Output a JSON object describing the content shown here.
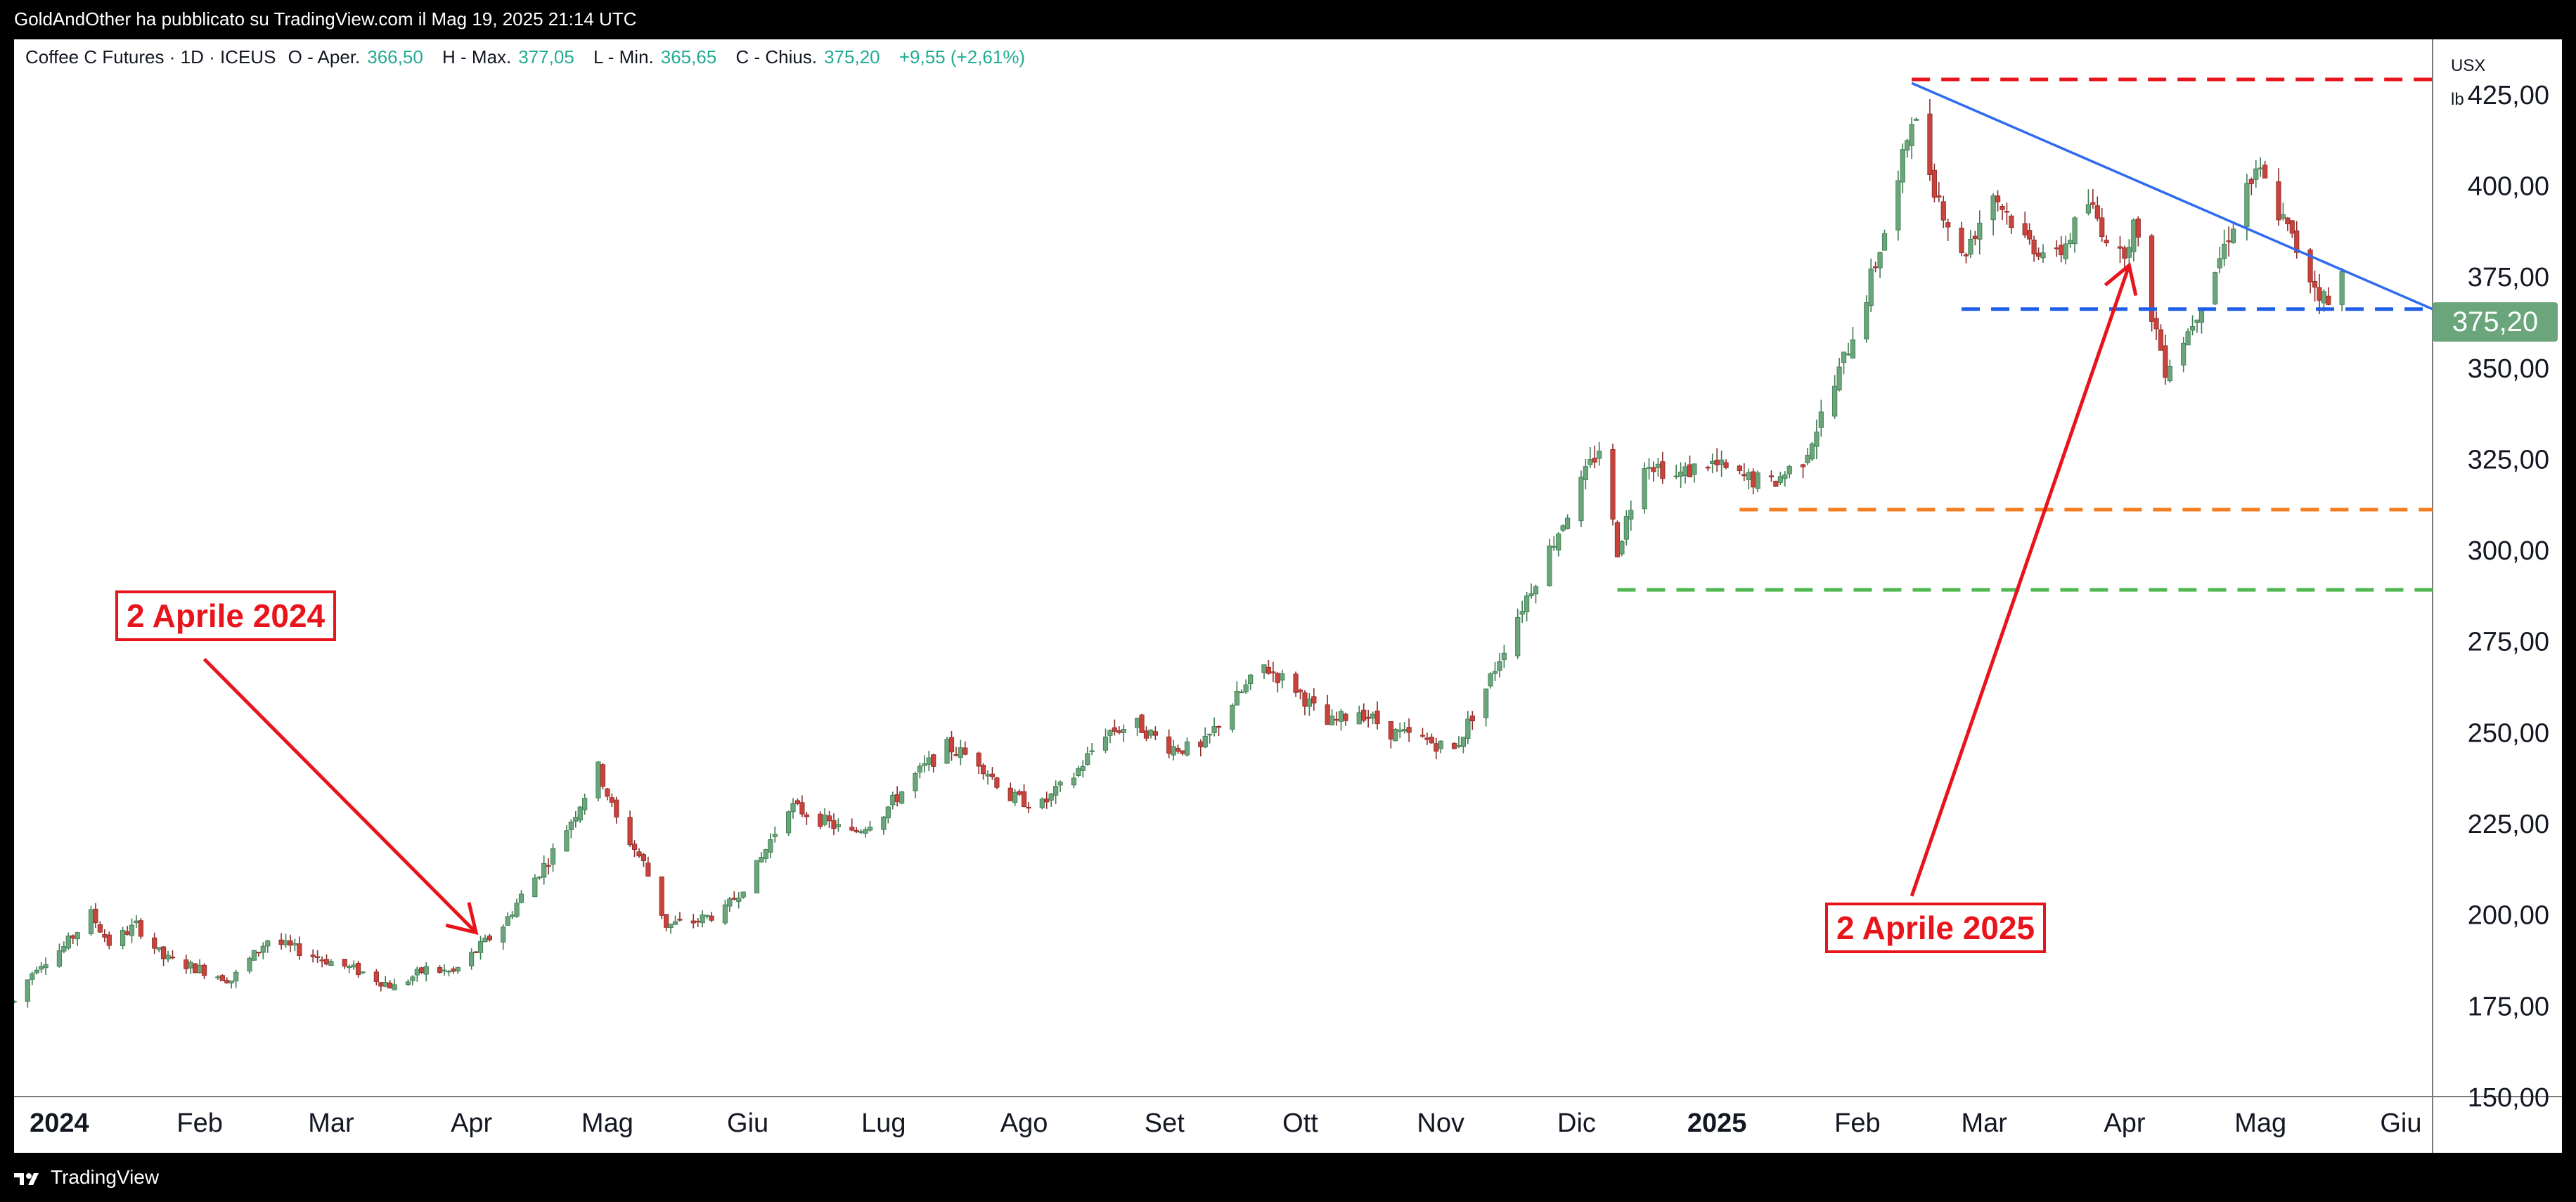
{
  "header": {
    "published_by": "GoldAndOther ha pubblicato su TradingView.com il Mag 19, 2025 21:14 UTC"
  },
  "legend": {
    "symbol": "Coffee C Futures · 1D · ICEUS",
    "open_label": "O - Aper.",
    "open": "366,50",
    "high_label": "H - Max.",
    "high": "377,05",
    "low_label": "L - Min.",
    "low": "365,65",
    "close_label": "C - Chius.",
    "close": "375,20",
    "change": "+9,55 (+2,61%)"
  },
  "currency": {
    "unit": "USX",
    "sub": "lb"
  },
  "last_price": "375,20",
  "colors": {
    "up": "#22ab94",
    "down": "#e23a3a",
    "up_fill": "#6aa57b",
    "down_fill": "#c9423b",
    "trendline": "#2f6bf0",
    "red_dashed": "#e8141c",
    "blue_dashed": "#1f5fe8",
    "orange_dashed": "#f57c1f",
    "green_dashed": "#4fb84f",
    "annotation": "#e8141c"
  },
  "annotations": [
    {
      "label": "2 Aprile 2024"
    },
    {
      "label": "2 Aprile 2025"
    }
  ],
  "footer": {
    "brand": "TradingView"
  },
  "chart_data": {
    "type": "candlestick",
    "title": "Coffee C Futures · 1D · ICEUS",
    "y_range": [
      150,
      440
    ],
    "y_ticks": [
      "425,00",
      "400,00",
      "375,00",
      "350,00",
      "325,00",
      "300,00",
      "275,00",
      "250,00",
      "225,00",
      "200,00",
      "175,00",
      "150,00"
    ],
    "y_tick_values": [
      425,
      400,
      375,
      350,
      325,
      300,
      275,
      250,
      225,
      200,
      175,
      150
    ],
    "x_range": [
      "2023-12-22",
      "2025-06-08"
    ],
    "x_ticks": [
      {
        "date": "2024-01-01",
        "label": "2024",
        "bold": true
      },
      {
        "date": "2024-02-01",
        "label": "Feb"
      },
      {
        "date": "2024-03-01",
        "label": "Mar"
      },
      {
        "date": "2024-04-01",
        "label": "Apr"
      },
      {
        "date": "2024-05-01",
        "label": "Mag"
      },
      {
        "date": "2024-06-01",
        "label": "Giu"
      },
      {
        "date": "2024-07-01",
        "label": "Lug"
      },
      {
        "date": "2024-08-01",
        "label": "Ago"
      },
      {
        "date": "2024-09-01",
        "label": "Set"
      },
      {
        "date": "2024-10-01",
        "label": "Ott"
      },
      {
        "date": "2024-11-01",
        "label": "Nov"
      },
      {
        "date": "2024-12-01",
        "label": "Dic"
      },
      {
        "date": "2025-01-01",
        "label": "2025",
        "bold": true
      },
      {
        "date": "2025-02-01",
        "label": "Feb"
      },
      {
        "date": "2025-03-01",
        "label": "Mar"
      },
      {
        "date": "2025-04-01",
        "label": "Apr"
      },
      {
        "date": "2025-05-01",
        "label": "Mag"
      },
      {
        "date": "2025-06-01",
        "label": "Giu"
      }
    ],
    "price_series": [
      [
        "2023-12-22",
        176
      ],
      [
        "2023-12-27",
        186
      ],
      [
        "2024-01-02",
        191
      ],
      [
        "2024-01-08",
        200
      ],
      [
        "2024-01-12",
        192
      ],
      [
        "2024-01-18",
        197
      ],
      [
        "2024-01-24",
        188
      ],
      [
        "2024-02-01",
        185
      ],
      [
        "2024-02-08",
        182
      ],
      [
        "2024-02-16",
        193
      ],
      [
        "2024-02-23",
        190
      ],
      [
        "2024-03-01",
        187
      ],
      [
        "2024-03-08",
        184
      ],
      [
        "2024-03-15",
        180
      ],
      [
        "2024-03-22",
        185
      ],
      [
        "2024-03-28",
        184
      ],
      [
        "2024-04-02",
        190
      ],
      [
        "2024-04-08",
        197
      ],
      [
        "2024-04-12",
        205
      ],
      [
        "2024-04-18",
        215
      ],
      [
        "2024-04-24",
        228
      ],
      [
        "2024-04-29",
        240
      ],
      [
        "2024-05-03",
        226
      ],
      [
        "2024-05-09",
        214
      ],
      [
        "2024-05-14",
        197
      ],
      [
        "2024-05-20",
        198
      ],
      [
        "2024-05-27",
        201
      ],
      [
        "2024-06-03",
        213
      ],
      [
        "2024-06-10",
        230
      ],
      [
        "2024-06-17",
        226
      ],
      [
        "2024-06-24",
        222
      ],
      [
        "2024-07-01",
        228
      ],
      [
        "2024-07-08",
        238
      ],
      [
        "2024-07-15",
        246
      ],
      [
        "2024-07-22",
        242
      ],
      [
        "2024-07-29",
        232
      ],
      [
        "2024-08-05",
        230
      ],
      [
        "2024-08-12",
        238
      ],
      [
        "2024-08-19",
        250
      ],
      [
        "2024-08-26",
        252
      ],
      [
        "2024-09-02",
        246
      ],
      [
        "2024-09-09",
        245
      ],
      [
        "2024-09-16",
        258
      ],
      [
        "2024-09-23",
        268
      ],
      [
        "2024-09-30",
        262
      ],
      [
        "2024-10-07",
        252
      ],
      [
        "2024-10-14",
        256
      ],
      [
        "2024-10-21",
        250
      ],
      [
        "2024-10-28",
        248
      ],
      [
        "2024-11-04",
        245
      ],
      [
        "2024-11-11",
        262
      ],
      [
        "2024-11-18",
        282
      ],
      [
        "2024-11-25",
        300
      ],
      [
        "2024-12-02",
        318
      ],
      [
        "2024-12-06",
        328
      ],
      [
        "2024-12-10",
        300
      ],
      [
        "2024-12-16",
        325
      ],
      [
        "2024-12-23",
        320
      ],
      [
        "2024-12-30",
        324
      ],
      [
        "2025-01-06",
        320
      ],
      [
        "2025-01-13",
        318
      ],
      [
        "2025-01-20",
        325
      ],
      [
        "2025-01-27",
        345
      ],
      [
        "2025-02-03",
        370
      ],
      [
        "2025-02-10",
        400
      ],
      [
        "2025-02-13",
        420
      ],
      [
        "2025-02-18",
        400
      ],
      [
        "2025-02-24",
        380
      ],
      [
        "2025-03-03",
        398
      ],
      [
        "2025-03-10",
        385
      ],
      [
        "2025-03-17",
        380
      ],
      [
        "2025-03-24",
        395
      ],
      [
        "2025-03-31",
        380
      ],
      [
        "2025-04-03",
        389
      ],
      [
        "2025-04-07",
        365
      ],
      [
        "2025-04-10",
        350
      ],
      [
        "2025-04-15",
        360
      ],
      [
        "2025-04-22",
        380
      ],
      [
        "2025-04-28",
        400
      ],
      [
        "2025-05-01",
        403
      ],
      [
        "2025-05-06",
        390
      ],
      [
        "2025-05-12",
        375
      ],
      [
        "2025-05-16",
        367
      ],
      [
        "2025-05-19",
        375.2
      ]
    ],
    "horizontal_levels": [
      {
        "name": "red_dashed",
        "value": 429,
        "from": "2025-02-13"
      },
      {
        "name": "blue_dashed",
        "value": 366,
        "from": "2025-02-24"
      },
      {
        "name": "orange_dashed",
        "value": 311,
        "from": "2025-01-06"
      },
      {
        "name": "green_dashed",
        "value": 289,
        "from": "2024-12-10"
      }
    ],
    "trendline": {
      "from": [
        "2025-02-13",
        428
      ],
      "to": [
        "2025-06-08",
        366
      ]
    },
    "arrows": [
      {
        "label": "2 Aprile 2024",
        "from": [
          "2024-02-02",
          270
        ],
        "to": [
          "2024-04-02",
          195
        ]
      },
      {
        "label": "2 Aprile 2025",
        "from": [
          "2025-02-13",
          205
        ],
        "to": [
          "2025-04-02",
          378
        ]
      }
    ]
  }
}
